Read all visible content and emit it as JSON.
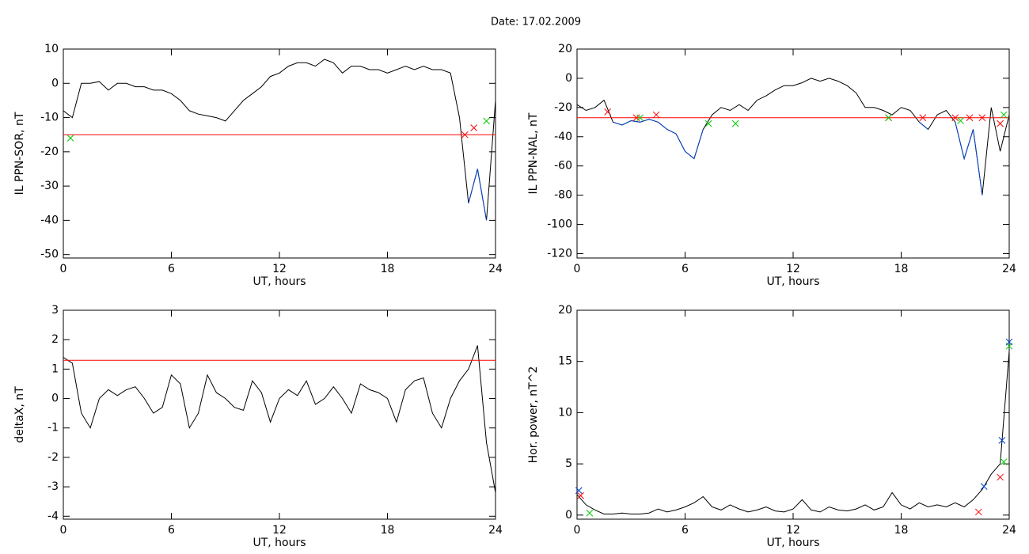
{
  "title": "Date:  17.02.2009",
  "chart_data": [
    {
      "type": "line",
      "xlabel": "UT, hours",
      "ylabel": "IL PPN-SOR, nT",
      "xlim": [
        0,
        24
      ],
      "xticks": [
        0,
        6,
        12,
        18,
        24
      ],
      "ylim": [
        -51,
        10
      ],
      "yticks": [
        -50,
        -40,
        -30,
        -20,
        -10,
        0,
        10
      ],
      "x": [
        0,
        0.5,
        1,
        1.5,
        2,
        2.5,
        3,
        3.5,
        4,
        4.5,
        5,
        5.5,
        6,
        6.5,
        7,
        7.5,
        8,
        8.5,
        9,
        9.5,
        10,
        10.5,
        11,
        11.5,
        12,
        12.5,
        13,
        13.5,
        14,
        14.5,
        15,
        15.5,
        16,
        16.5,
        17,
        17.5,
        18,
        18.5,
        19,
        19.5,
        20,
        20.5,
        21,
        21.5,
        22,
        22.5,
        23,
        23.5,
        24
      ],
      "series": [
        {
          "color": "#000000",
          "values": [
            -8,
            -10,
            0,
            0,
            0.5,
            -2,
            0,
            0,
            -1,
            -1,
            -2,
            -2,
            -3,
            -5,
            -8,
            -9,
            -9.5,
            -10,
            -11,
            -8,
            -5,
            -3,
            -1,
            2,
            3,
            5,
            6,
            6,
            5,
            7,
            6,
            3,
            5,
            5,
            4,
            4,
            3,
            4,
            5,
            4,
            5,
            4,
            4,
            3,
            -10,
            -35,
            -25,
            -40,
            -5
          ]
        },
        {
          "color": "#0044cc",
          "values": [
            null,
            null,
            null,
            null,
            null,
            null,
            null,
            null,
            null,
            null,
            null,
            null,
            null,
            null,
            null,
            null,
            null,
            null,
            null,
            null,
            null,
            null,
            null,
            null,
            null,
            null,
            null,
            null,
            null,
            null,
            null,
            null,
            null,
            null,
            null,
            null,
            null,
            null,
            null,
            null,
            null,
            null,
            null,
            null,
            null,
            -35,
            -25,
            -40,
            null
          ]
        }
      ],
      "hline": {
        "value": -15,
        "color": "#ff0000"
      },
      "markers": [
        {
          "color": "#ff0000",
          "x": [
            22.3,
            22.8
          ],
          "y": [
            -15,
            -13
          ]
        },
        {
          "color": "#00cc00",
          "x": [
            0.4,
            23.5
          ],
          "y": [
            -16,
            -11
          ]
        }
      ]
    },
    {
      "type": "line",
      "xlabel": "UT, hours",
      "ylabel": "IL PPN-NAL, nT",
      "xlim": [
        0,
        24
      ],
      "xticks": [
        0,
        6,
        12,
        18,
        24
      ],
      "ylim": [
        -123,
        20
      ],
      "yticks": [
        -120,
        -100,
        -80,
        -60,
        -40,
        -20,
        0,
        20
      ],
      "x": [
        0,
        0.5,
        1,
        1.5,
        2,
        2.5,
        3,
        3.5,
        4,
        4.5,
        5,
        5.5,
        6,
        6.5,
        7,
        7.5,
        8,
        8.5,
        9,
        9.5,
        10,
        10.5,
        11,
        11.5,
        12,
        12.5,
        13,
        13.5,
        14,
        14.5,
        15,
        15.5,
        16,
        16.5,
        17,
        17.5,
        18,
        18.5,
        19,
        19.5,
        20,
        20.5,
        21,
        21.5,
        22,
        22.5,
        23,
        23.5,
        24
      ],
      "series": [
        {
          "color": "#000000",
          "values": [
            -18,
            -22,
            -20,
            -15,
            -30,
            -32,
            -29,
            -30,
            -28,
            -30,
            -35,
            -38,
            -50,
            -55,
            -35,
            -25,
            -20,
            -22,
            -18,
            -22,
            -15,
            -12,
            -8,
            -5,
            -5,
            -3,
            0,
            -2,
            0,
            -2,
            -5,
            -10,
            -20,
            -20,
            -22,
            -25,
            -20,
            -22,
            -30,
            -35,
            -25,
            -22,
            -30,
            -55,
            -35,
            -80,
            -20,
            -50,
            -25
          ]
        },
        {
          "color": "#0044cc",
          "values": [
            null,
            null,
            null,
            null,
            -30,
            -32,
            -29,
            -30,
            -28,
            -30,
            -35,
            -38,
            -50,
            -55,
            -35,
            null,
            null,
            null,
            null,
            null,
            null,
            null,
            null,
            null,
            null,
            null,
            null,
            null,
            null,
            null,
            null,
            null,
            null,
            null,
            null,
            null,
            null,
            null,
            -30,
            -35,
            null,
            null,
            -30,
            -55,
            -35,
            -80,
            null,
            -50,
            null
          ]
        }
      ],
      "hline": {
        "value": -27,
        "color": "#ff0000"
      },
      "markers": [
        {
          "color": "#ff0000",
          "x": [
            1.7,
            3.3,
            4.4,
            17.3,
            19.2,
            21,
            21.8,
            22.5,
            23.5
          ],
          "y": [
            -23,
            -27,
            -25,
            -27,
            -27,
            -27,
            -27,
            -27,
            -31
          ]
        },
        {
          "color": "#00cc00",
          "x": [
            3.5,
            7.3,
            8.8,
            17.3,
            21.3,
            23.7
          ],
          "y": [
            -27,
            -31,
            -31,
            -27,
            -29,
            -25
          ]
        }
      ]
    },
    {
      "type": "line",
      "xlabel": "UT, hours",
      "ylabel": "deltaX, nT",
      "xlim": [
        0,
        24
      ],
      "xticks": [
        0,
        6,
        12,
        18,
        24
      ],
      "ylim": [
        -4.1,
        3
      ],
      "yticks": [
        -4,
        -3,
        -2,
        -1,
        0,
        1,
        2,
        3
      ],
      "x": [
        0,
        0.5,
        1,
        1.5,
        2,
        2.5,
        3,
        3.5,
        4,
        4.5,
        5,
        5.5,
        6,
        6.5,
        7,
        7.5,
        8,
        8.5,
        9,
        9.5,
        10,
        10.5,
        11,
        11.5,
        12,
        12.5,
        13,
        13.5,
        14,
        14.5,
        15,
        15.5,
        16,
        16.5,
        17,
        17.5,
        18,
        18.5,
        19,
        19.5,
        20,
        20.5,
        21,
        21.5,
        22,
        22.5,
        23,
        23.5,
        24
      ],
      "series": [
        {
          "color": "#000000",
          "values": [
            1.4,
            1.2,
            -0.5,
            -1,
            0,
            0.3,
            0.1,
            0.3,
            0.4,
            0,
            -0.5,
            -0.3,
            0.8,
            0.5,
            -1,
            -0.5,
            0.8,
            0.2,
            0,
            -0.3,
            -0.4,
            0.6,
            0.2,
            -0.8,
            0,
            0.3,
            0.1,
            0.6,
            -0.2,
            0,
            0.4,
            0,
            -0.5,
            0.5,
            0.3,
            0.2,
            0,
            -0.8,
            0.3,
            0.6,
            0.7,
            -0.5,
            -1,
            0,
            0.6,
            1,
            1.8,
            -1.5,
            -3.2
          ]
        }
      ],
      "hline": {
        "value": 1.3,
        "color": "#ff0000"
      },
      "markers": []
    },
    {
      "type": "line",
      "xlabel": "UT, hours",
      "ylabel": "Hor. power, nT^2",
      "xlim": [
        0,
        24
      ],
      "xticks": [
        0,
        6,
        12,
        18,
        24
      ],
      "ylim": [
        -0.4,
        20
      ],
      "yticks": [
        0,
        5,
        10,
        15,
        20
      ],
      "x": [
        0,
        0.5,
        1,
        1.5,
        2,
        2.5,
        3,
        3.5,
        4,
        4.5,
        5,
        5.5,
        6,
        6.5,
        7,
        7.5,
        8,
        8.5,
        9,
        9.5,
        10,
        10.5,
        11,
        11.5,
        12,
        12.5,
        13,
        13.5,
        14,
        14.5,
        15,
        15.5,
        16,
        16.5,
        17,
        17.5,
        18,
        18.5,
        19,
        19.5,
        20,
        20.5,
        21,
        21.5,
        22,
        22.5,
        23,
        23.5,
        24
      ],
      "series": [
        {
          "color": "#000000",
          "values": [
            2,
            1,
            0.5,
            0.1,
            0.1,
            0.2,
            0.1,
            0.1,
            0.2,
            0.6,
            0.3,
            0.5,
            0.8,
            1.2,
            1.8,
            0.8,
            0.5,
            1,
            0.6,
            0.3,
            0.5,
            0.8,
            0.4,
            0.3,
            0.6,
            1.5,
            0.5,
            0.3,
            0.8,
            0.5,
            0.4,
            0.6,
            1,
            0.5,
            0.8,
            2.2,
            1,
            0.6,
            1.2,
            0.8,
            1,
            0.8,
            1.2,
            0.8,
            1.5,
            2.5,
            4,
            5,
            16
          ]
        }
      ],
      "markers": [
        {
          "color": "#ff0000",
          "x": [
            0.2,
            22.3,
            23.5
          ],
          "y": [
            1.9,
            0.3,
            3.7
          ]
        },
        {
          "color": "#00cc00",
          "x": [
            0.7,
            23.7,
            24
          ],
          "y": [
            0.2,
            5.2,
            16.5
          ]
        },
        {
          "color": "#0044cc",
          "x": [
            0.1,
            22.6,
            23.6,
            24
          ],
          "y": [
            2.4,
            2.8,
            7.3,
            16.9
          ]
        }
      ]
    }
  ]
}
